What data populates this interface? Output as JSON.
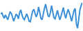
{
  "chart_data": {
    "type": "line",
    "color": "#3a8fd6",
    "tick_labels": false,
    "grid": false,
    "ylim": [
      0,
      100
    ],
    "values": [
      55,
      60,
      48,
      40,
      52,
      45,
      35,
      50,
      62,
      58,
      45,
      30,
      42,
      55,
      50,
      38,
      60,
      70,
      52,
      40,
      35,
      48,
      56,
      45,
      30,
      28,
      50,
      65,
      72,
      60,
      45,
      55,
      80,
      62,
      40,
      35,
      58,
      75,
      90,
      70,
      50,
      45,
      60,
      85,
      65,
      42,
      38,
      55,
      68,
      50,
      35,
      48,
      62,
      78,
      55,
      40,
      58,
      72,
      60,
      45,
      30,
      50,
      68,
      75,
      20,
      5,
      45,
      70,
      85,
      95
    ]
  }
}
